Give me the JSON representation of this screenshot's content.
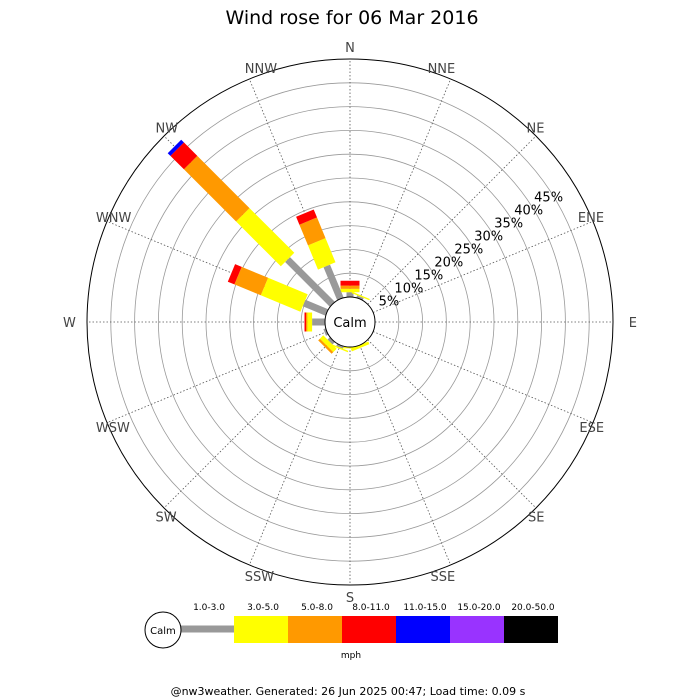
{
  "chart_data": {
    "type": "wind-rose",
    "title": "Wind rose for 06 Mar 2016",
    "center_label": "Calm",
    "directions": [
      "N",
      "NNE",
      "NE",
      "ENE",
      "E",
      "ESE",
      "SE",
      "SSE",
      "S",
      "SSW",
      "SW",
      "WSW",
      "W",
      "WNW",
      "NW",
      "NNW"
    ],
    "radial_ticks": [
      "5%",
      "10%",
      "15%",
      "20%",
      "25%",
      "30%",
      "35%",
      "40%",
      "45%"
    ],
    "radial_values": [
      5,
      10,
      15,
      20,
      25,
      30,
      35,
      40,
      45
    ],
    "radial_max": 50,
    "bins": [
      {
        "label": "1.0-3.0",
        "color": "#999999"
      },
      {
        "label": "3.0-5.0",
        "color": "#ffff00"
      },
      {
        "label": "5.0-8.0",
        "color": "#ff9900"
      },
      {
        "label": "8.0-11.0",
        "color": "#ff0000"
      },
      {
        "label": "11.0-15.0",
        "color": "#0000ff"
      },
      {
        "label": "15.0-20.0",
        "color": "#9933ff"
      },
      {
        "label": "20.0-50.0",
        "color": "#000000"
      }
    ],
    "unit": "mph",
    "series": [
      {
        "direction": "N",
        "values": [
          1.0,
          0.7,
          0.7,
          1.0,
          0,
          0,
          0
        ]
      },
      {
        "direction": "NNE",
        "values": [
          0.5,
          0.3,
          0,
          0,
          0,
          0,
          0
        ]
      },
      {
        "direction": "NE",
        "values": [
          0,
          0,
          0,
          0,
          0,
          0,
          0
        ]
      },
      {
        "direction": "ENE",
        "values": [
          0,
          0,
          0,
          0,
          0,
          0,
          0
        ]
      },
      {
        "direction": "E",
        "values": [
          0,
          0,
          0,
          0,
          0,
          0,
          0
        ]
      },
      {
        "direction": "ESE",
        "values": [
          0,
          0,
          0,
          0,
          0,
          0,
          0
        ]
      },
      {
        "direction": "SE",
        "values": [
          0,
          0,
          0,
          0,
          0,
          0,
          0
        ]
      },
      {
        "direction": "SSE",
        "values": [
          0,
          0.6,
          0,
          0,
          0,
          0,
          0
        ]
      },
      {
        "direction": "S",
        "values": [
          0,
          0.3,
          0,
          0,
          0,
          0,
          0
        ]
      },
      {
        "direction": "SSW",
        "values": [
          0.5,
          0.3,
          0,
          0,
          0,
          0,
          0
        ]
      },
      {
        "direction": "SW",
        "values": [
          0.7,
          1.0,
          0.5,
          0,
          0,
          0,
          0
        ]
      },
      {
        "direction": "WSW",
        "values": [
          0.5,
          0,
          0,
          0,
          0,
          0,
          0
        ]
      },
      {
        "direction": "W",
        "values": [
          2.7,
          1.0,
          0.3,
          0.3,
          0,
          0,
          0
        ]
      },
      {
        "direction": "WNW",
        "values": [
          5.2,
          9.0,
          6.0,
          1.5,
          0,
          0,
          0
        ]
      },
      {
        "direction": "NW",
        "values": [
          13.3,
          13.3,
          15.5,
          4.0,
          0.8,
          0,
          0
        ]
      },
      {
        "direction": "NNW",
        "values": [
          7.5,
          5.5,
          4.7,
          1.8,
          0,
          0,
          0
        ]
      }
    ]
  },
  "footer": "@nw3weather. Generated: 26 Jun 2025 00:47; Load time: 0.09 s"
}
